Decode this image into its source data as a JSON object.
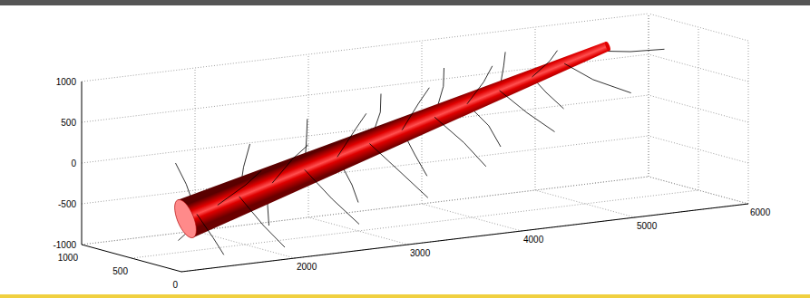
{
  "chart_data": {
    "type": "3d_line",
    "xlim": [
      1000,
      6000
    ],
    "xticks": [
      2000,
      3000,
      4000,
      5000,
      6000
    ],
    "ylim": [
      0,
      1000
    ],
    "yticks": [
      0,
      500,
      1000
    ],
    "zlim": [
      -1000,
      1000
    ],
    "zticks": [
      -1000,
      -500,
      0,
      500,
      1000
    ],
    "grid": true,
    "tube": {
      "color": "#e00000",
      "x": [
        1300,
        5200
      ],
      "y": [
        300,
        500
      ],
      "z": [
        -500,
        900
      ],
      "radius": [
        250,
        60
      ]
    },
    "branches": {
      "color": "#000000",
      "lines": [
        [
          [
            1400,
            300,
            -460
          ],
          [
            1350,
            350,
            -100
          ],
          [
            1300,
            400,
            150
          ]
        ],
        [
          [
            1400,
            300,
            -460
          ],
          [
            1500,
            250,
            -750
          ],
          [
            1550,
            200,
            -950
          ]
        ],
        [
          [
            1600,
            320,
            -390
          ],
          [
            1700,
            150,
            -100
          ],
          [
            1750,
            50,
            100
          ]
        ],
        [
          [
            1600,
            320,
            -390
          ],
          [
            1550,
            500,
            -700
          ],
          [
            1500,
            600,
            -900
          ]
        ],
        [
          [
            1800,
            330,
            -320
          ],
          [
            1900,
            400,
            0
          ],
          [
            2000,
            450,
            250
          ]
        ],
        [
          [
            1800,
            330,
            -320
          ],
          [
            1900,
            200,
            -650
          ],
          [
            2000,
            100,
            -900
          ]
        ],
        [
          [
            2100,
            340,
            -210
          ],
          [
            2200,
            250,
            100
          ],
          [
            2250,
            150,
            300
          ]
        ],
        [
          [
            2100,
            340,
            -210
          ],
          [
            2200,
            500,
            -550
          ],
          [
            2300,
            600,
            -850
          ]
        ],
        [
          [
            2400,
            356,
            -100
          ],
          [
            2500,
            450,
            250
          ],
          [
            2550,
            500,
            450
          ]
        ],
        [
          [
            2400,
            356,
            -100
          ],
          [
            2550,
            250,
            -450
          ],
          [
            2700,
            150,
            -750
          ]
        ],
        [
          [
            2700,
            370,
            0
          ],
          [
            2800,
            300,
            350
          ],
          [
            2850,
            250,
            550
          ]
        ],
        [
          [
            2700,
            370,
            0
          ],
          [
            2900,
            450,
            -400
          ],
          [
            3000,
            500,
            -650
          ]
        ],
        [
          [
            3000,
            387,
            110
          ],
          [
            3150,
            450,
            450
          ],
          [
            3200,
            500,
            650
          ]
        ],
        [
          [
            3000,
            387,
            110
          ],
          [
            3200,
            300,
            -250
          ],
          [
            3350,
            200,
            -550
          ]
        ],
        [
          [
            3300,
            403,
            220
          ],
          [
            3400,
            350,
            550
          ],
          [
            3450,
            300,
            750
          ]
        ],
        [
          [
            3300,
            403,
            220
          ],
          [
            3500,
            500,
            -150
          ],
          [
            3650,
            550,
            -450
          ]
        ],
        [
          [
            3600,
            418,
            325
          ],
          [
            3750,
            500,
            650
          ],
          [
            3800,
            550,
            850
          ]
        ],
        [
          [
            3600,
            418,
            325
          ],
          [
            3800,
            350,
            0
          ],
          [
            3950,
            300,
            -300
          ]
        ],
        [
          [
            3900,
            433,
            430
          ],
          [
            4000,
            380,
            700
          ],
          [
            4050,
            350,
            900
          ]
        ],
        [
          [
            3900,
            433,
            430
          ],
          [
            4150,
            500,
            100
          ],
          [
            4300,
            550,
            -200
          ]
        ],
        [
          [
            4200,
            449,
            540
          ],
          [
            4400,
            400,
            250
          ],
          [
            4600,
            350,
            0
          ]
        ],
        [
          [
            4200,
            449,
            540
          ],
          [
            4300,
            520,
            800
          ],
          [
            4350,
            560,
            950
          ]
        ],
        [
          [
            4500,
            464,
            650
          ],
          [
            4700,
            550,
            400
          ],
          [
            4900,
            600,
            150
          ]
        ],
        [
          [
            4500,
            464,
            650
          ],
          [
            4600,
            400,
            850
          ],
          [
            4650,
            380,
            980
          ]
        ],
        [
          [
            4800,
            480,
            760
          ],
          [
            5000,
            420,
            550
          ],
          [
            5300,
            380,
            350
          ]
        ],
        [
          [
            5100,
            495,
            860
          ],
          [
            5400,
            500,
            800
          ],
          [
            5700,
            500,
            780
          ]
        ]
      ]
    }
  }
}
